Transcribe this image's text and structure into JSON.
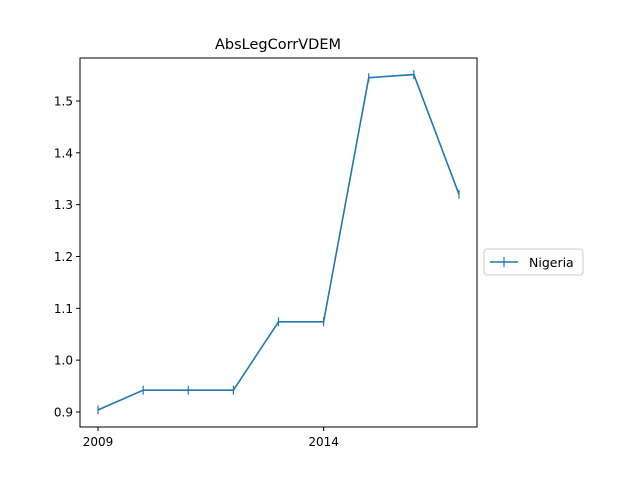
{
  "chart_data": {
    "type": "line",
    "title": "AbsLegCorrVDEM",
    "xlabel": "",
    "ylabel": "",
    "x": [
      2009,
      2010,
      2011,
      2012,
      2013,
      2014,
      2015,
      2016,
      2017
    ],
    "series": [
      {
        "name": "Nigeria",
        "values": [
          0.904,
          0.942,
          0.942,
          0.942,
          1.074,
          1.074,
          1.545,
          1.551,
          1.32
        ],
        "color": "#1f77b4",
        "marker": "|"
      }
    ],
    "x_ticks": [
      2009,
      2014
    ],
    "x_tick_labels": [
      "2009",
      "2014"
    ],
    "y_ticks": [
      0.9,
      1.0,
      1.1,
      1.2,
      1.3,
      1.4,
      1.5
    ],
    "y_tick_labels": [
      "0.9",
      "1.0",
      "1.1",
      "1.2",
      "1.3",
      "1.4",
      "1.5"
    ],
    "xlim": [
      2008.6,
      2017.4
    ],
    "ylim": [
      0.871,
      1.583
    ],
    "grid": false,
    "legend_placement": "center-right, outside plot"
  }
}
